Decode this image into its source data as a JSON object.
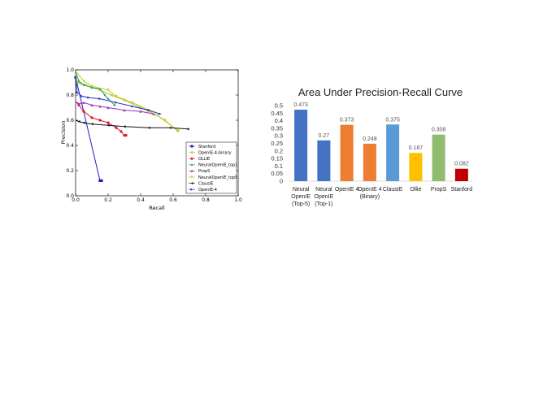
{
  "chart_data": [
    {
      "type": "line",
      "xlabel": "Recall",
      "ylabel": "Precision",
      "xlim": [
        0,
        1
      ],
      "ylim": [
        0,
        1
      ],
      "x_ticks": [
        "0.0",
        "0.2",
        "0.4",
        "0.6",
        "0.8",
        "1.0"
      ],
      "y_ticks": [
        "0.0",
        "0.2",
        "0.4",
        "0.6",
        "0.8",
        "1.0"
      ],
      "grid": false,
      "legend_position": "bottom-right",
      "series": [
        {
          "name": "Stanford",
          "color": "#1f1fbf",
          "marker": "square",
          "points": [
            [
              0.0,
              0.94
            ],
            [
              0.15,
              0.12
            ],
            [
              0.16,
              0.12
            ]
          ]
        },
        {
          "name": "OpenIE-4-binary",
          "color": "#b8c43a",
          "marker": "x",
          "points": [
            [
              0.0,
              0.97
            ],
            [
              0.01,
              0.9
            ],
            [
              0.03,
              0.89
            ],
            [
              0.06,
              0.88
            ],
            [
              0.1,
              0.86
            ],
            [
              0.15,
              0.84
            ],
            [
              0.22,
              0.8
            ],
            [
              0.3,
              0.76
            ],
            [
              0.4,
              0.7
            ],
            [
              0.5,
              0.64
            ],
            [
              0.63,
              0.52
            ]
          ]
        },
        {
          "name": "OLLIE",
          "color": "#e0142a",
          "marker": "circle",
          "points": [
            [
              0.0,
              0.75
            ],
            [
              0.02,
              0.72
            ],
            [
              0.05,
              0.67
            ],
            [
              0.1,
              0.62
            ],
            [
              0.15,
              0.6
            ],
            [
              0.2,
              0.58
            ],
            [
              0.25,
              0.54
            ],
            [
              0.28,
              0.51
            ],
            [
              0.3,
              0.48
            ],
            [
              0.31,
              0.48
            ]
          ]
        },
        {
          "name": "NeuralOpenIE_top1",
          "color": "#20a07a",
          "marker": "star",
          "points": [
            [
              0.0,
              0.99
            ],
            [
              0.02,
              0.91
            ],
            [
              0.05,
              0.88
            ],
            [
              0.1,
              0.86
            ],
            [
              0.15,
              0.85
            ],
            [
              0.18,
              0.8
            ],
            [
              0.2,
              0.77
            ],
            [
              0.24,
              0.72
            ]
          ]
        },
        {
          "name": "PropS",
          "color": "#a02bc0",
          "marker": "triangle-up",
          "points": [
            [
              0.0,
              0.75
            ],
            [
              0.02,
              0.73
            ],
            [
              0.05,
              0.74
            ],
            [
              0.1,
              0.72
            ],
            [
              0.15,
              0.71
            ],
            [
              0.2,
              0.7
            ],
            [
              0.3,
              0.68
            ],
            [
              0.4,
              0.67
            ],
            [
              0.48,
              0.65
            ]
          ]
        },
        {
          "name": "NeuralOpenIE_top5",
          "color": "#c8c81e",
          "marker": "triangle-down",
          "points": [
            [
              0.0,
              0.99
            ],
            [
              0.05,
              0.91
            ],
            [
              0.1,
              0.87
            ],
            [
              0.2,
              0.84
            ],
            [
              0.25,
              0.79
            ],
            [
              0.35,
              0.74
            ],
            [
              0.45,
              0.68
            ],
            [
              0.55,
              0.6
            ],
            [
              0.63,
              0.51
            ]
          ]
        },
        {
          "name": "ClausIE",
          "color": "#111111",
          "marker": "triangle-left",
          "points": [
            [
              0.0,
              0.6
            ],
            [
              0.02,
              0.59
            ],
            [
              0.05,
              0.58
            ],
            [
              0.1,
              0.57
            ],
            [
              0.2,
              0.56
            ],
            [
              0.3,
              0.55
            ],
            [
              0.45,
              0.54
            ],
            [
              0.58,
              0.54
            ],
            [
              0.69,
              0.53
            ]
          ]
        },
        {
          "name": "OpenIE-4",
          "color": "#1f2fbf",
          "marker": "triangle-right",
          "points": [
            [
              0.0,
              0.95
            ],
            [
              0.01,
              0.82
            ],
            [
              0.04,
              0.79
            ],
            [
              0.08,
              0.78
            ],
            [
              0.15,
              0.77
            ],
            [
              0.25,
              0.74
            ],
            [
              0.35,
              0.71
            ],
            [
              0.45,
              0.68
            ],
            [
              0.52,
              0.65
            ]
          ]
        }
      ]
    },
    {
      "type": "bar",
      "title": "Area Under Precision-Recall Curve",
      "ylim": [
        0,
        0.5
      ],
      "y_ticks": [
        "0",
        "0.05",
        "0.1",
        "0.15",
        "0.2",
        "0.25",
        "0.3",
        "0.35",
        "0.4",
        "0.45",
        "0.5"
      ],
      "grid": false,
      "categories": [
        [
          "Neural",
          "OpenIE",
          "(Top-5)"
        ],
        [
          "Neural",
          "OpenIE",
          "(Top-1)"
        ],
        [
          "OpenIE 4"
        ],
        [
          "OpenIE 4",
          "(Binary)"
        ],
        [
          "ClausIE"
        ],
        [
          "Ollie"
        ],
        [
          "PropS"
        ],
        [
          "Stanford"
        ]
      ],
      "values": [
        0.473,
        0.27,
        0.373,
        0.248,
        0.375,
        0.187,
        0.308,
        0.082
      ],
      "value_labels": [
        "0.473",
        "0.27",
        "0.373",
        "0.248",
        "0.375",
        "0.187",
        "0.308",
        "0.082"
      ],
      "colors": [
        "#4472c4",
        "#4472c4",
        "#ed7d31",
        "#ed7d31",
        "#5b9bd5",
        "#ffc000",
        "#8fbc6e",
        "#c00000"
      ]
    }
  ]
}
